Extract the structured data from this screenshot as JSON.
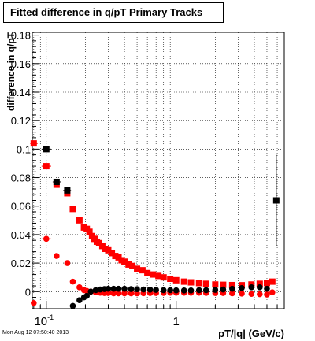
{
  "chart_data": {
    "type": "scatter",
    "title": "Fitted difference in q/pT  Primary Tracks",
    "xlabel": "pT/|q| (GeV/c)",
    "ylabel": "difference in q/pT",
    "xscale": "log",
    "xlim": [
      0.078,
      6.8
    ],
    "ylim": [
      -0.012,
      0.182
    ],
    "x_tick_labels": [
      {
        "value": 0.1,
        "base": "10",
        "exp": "-1"
      },
      {
        "value": 1,
        "text": "1"
      }
    ],
    "y_ticks": [
      0,
      0.02,
      0.04,
      0.06,
      0.08,
      0.1,
      0.12,
      0.14,
      0.16,
      0.18
    ],
    "y_tick_labels": [
      "0",
      "0.02",
      "0.04",
      "0.06",
      "0.08",
      "0.1",
      "0.12",
      "0.14",
      "0.16",
      "0.18"
    ],
    "grid": true,
    "series": [
      {
        "color": "#ff0000",
        "marker": "square",
        "points": [
          {
            "x": 0.08,
            "y": 0.104
          },
          {
            "x": 0.1,
            "y": 0.088
          },
          {
            "x": 0.12,
            "y": 0.075
          },
          {
            "x": 0.145,
            "y": 0.069
          },
          {
            "x": 0.16,
            "y": 0.058
          },
          {
            "x": 0.18,
            "y": 0.05
          },
          {
            "x": 0.195,
            "y": 0.045
          },
          {
            "x": 0.205,
            "y": 0.044
          },
          {
            "x": 0.215,
            "y": 0.042
          },
          {
            "x": 0.225,
            "y": 0.039
          },
          {
            "x": 0.235,
            "y": 0.037
          },
          {
            "x": 0.245,
            "y": 0.035
          },
          {
            "x": 0.255,
            "y": 0.034
          },
          {
            "x": 0.27,
            "y": 0.032
          },
          {
            "x": 0.285,
            "y": 0.03
          },
          {
            "x": 0.3,
            "y": 0.029
          },
          {
            "x": 0.32,
            "y": 0.027
          },
          {
            "x": 0.34,
            "y": 0.025
          },
          {
            "x": 0.36,
            "y": 0.024
          },
          {
            "x": 0.38,
            "y": 0.022
          },
          {
            "x": 0.4,
            "y": 0.021
          },
          {
            "x": 0.43,
            "y": 0.019
          },
          {
            "x": 0.46,
            "y": 0.018
          },
          {
            "x": 0.5,
            "y": 0.016
          },
          {
            "x": 0.55,
            "y": 0.015
          },
          {
            "x": 0.6,
            "y": 0.013
          },
          {
            "x": 0.66,
            "y": 0.012
          },
          {
            "x": 0.73,
            "y": 0.011
          },
          {
            "x": 0.8,
            "y": 0.01
          },
          {
            "x": 0.9,
            "y": 0.009
          },
          {
            "x": 1.0,
            "y": 0.008
          },
          {
            "x": 1.15,
            "y": 0.007
          },
          {
            "x": 1.3,
            "y": 0.0065
          },
          {
            "x": 1.5,
            "y": 0.006
          },
          {
            "x": 1.7,
            "y": 0.0055
          },
          {
            "x": 2.0,
            "y": 0.005
          },
          {
            "x": 2.3,
            "y": 0.0048
          },
          {
            "x": 2.7,
            "y": 0.0046
          },
          {
            "x": 3.2,
            "y": 0.0045
          },
          {
            "x": 3.8,
            "y": 0.005
          },
          {
            "x": 4.4,
            "y": 0.0055
          },
          {
            "x": 5.0,
            "y": 0.006
          },
          {
            "x": 5.5,
            "y": 0.007
          }
        ]
      },
      {
        "color": "#ff0000",
        "marker": "circle",
        "points": [
          {
            "x": 0.08,
            "y": -0.008
          },
          {
            "x": 0.1,
            "y": 0.037
          },
          {
            "x": 0.12,
            "y": 0.025
          },
          {
            "x": 0.145,
            "y": 0.02
          },
          {
            "x": 0.16,
            "y": 0.007
          },
          {
            "x": 0.18,
            "y": 0.003
          },
          {
            "x": 0.195,
            "y": 0.001
          },
          {
            "x": 0.205,
            "y": 0.0005
          },
          {
            "x": 0.22,
            "y": 0.0
          },
          {
            "x": 0.24,
            "y": -0.0005
          },
          {
            "x": 0.26,
            "y": -0.0008
          },
          {
            "x": 0.28,
            "y": -0.001
          },
          {
            "x": 0.3,
            "y": -0.001
          },
          {
            "x": 0.33,
            "y": -0.0012
          },
          {
            "x": 0.36,
            "y": -0.0012
          },
          {
            "x": 0.4,
            "y": -0.0012
          },
          {
            "x": 0.45,
            "y": -0.0012
          },
          {
            "x": 0.5,
            "y": -0.0012
          },
          {
            "x": 0.56,
            "y": -0.0011
          },
          {
            "x": 0.63,
            "y": -0.001
          },
          {
            "x": 0.7,
            "y": -0.001
          },
          {
            "x": 0.8,
            "y": -0.0009
          },
          {
            "x": 0.9,
            "y": -0.0008
          },
          {
            "x": 1.0,
            "y": -0.0008
          },
          {
            "x": 1.15,
            "y": -0.0008
          },
          {
            "x": 1.3,
            "y": -0.0008
          },
          {
            "x": 1.5,
            "y": -0.0008
          },
          {
            "x": 1.7,
            "y": -0.0009
          },
          {
            "x": 2.0,
            "y": -0.001
          },
          {
            "x": 2.3,
            "y": -0.001
          },
          {
            "x": 2.7,
            "y": -0.0012
          },
          {
            "x": 3.2,
            "y": -0.0014
          },
          {
            "x": 3.8,
            "y": -0.0016
          },
          {
            "x": 4.4,
            "y": -0.0018
          },
          {
            "x": 5.0,
            "y": -0.002
          },
          {
            "x": 5.5,
            "y": -0.0005
          }
        ]
      },
      {
        "color": "#000000",
        "marker": "square",
        "points": [
          {
            "x": 0.1,
            "y": 0.1
          },
          {
            "x": 0.12,
            "y": 0.077
          },
          {
            "x": 0.145,
            "y": 0.071
          },
          {
            "x": 5.9,
            "y": 0.064
          }
        ]
      },
      {
        "color": "#000000",
        "marker": "circle",
        "points": [
          {
            "x": 0.16,
            "y": -0.01
          },
          {
            "x": 0.18,
            "y": -0.006
          },
          {
            "x": 0.195,
            "y": -0.004
          },
          {
            "x": 0.205,
            "y": -0.003
          },
          {
            "x": 0.22,
            "y": 0.0
          },
          {
            "x": 0.24,
            "y": 0.001
          },
          {
            "x": 0.26,
            "y": 0.0015
          },
          {
            "x": 0.28,
            "y": 0.0018
          },
          {
            "x": 0.3,
            "y": 0.002
          },
          {
            "x": 0.33,
            "y": 0.002
          },
          {
            "x": 0.36,
            "y": 0.002
          },
          {
            "x": 0.4,
            "y": 0.002
          },
          {
            "x": 0.45,
            "y": 0.0018
          },
          {
            "x": 0.5,
            "y": 0.0017
          },
          {
            "x": 0.56,
            "y": 0.0015
          },
          {
            "x": 0.63,
            "y": 0.0014
          },
          {
            "x": 0.7,
            "y": 0.0012
          },
          {
            "x": 0.8,
            "y": 0.001
          },
          {
            "x": 0.9,
            "y": 0.001
          },
          {
            "x": 1.0,
            "y": 0.0009
          },
          {
            "x": 1.15,
            "y": 0.0008
          },
          {
            "x": 1.3,
            "y": 0.0008
          },
          {
            "x": 1.5,
            "y": 0.001
          },
          {
            "x": 1.7,
            "y": 0.001
          },
          {
            "x": 2.0,
            "y": 0.0012
          },
          {
            "x": 2.3,
            "y": 0.0015
          },
          {
            "x": 2.7,
            "y": 0.002
          },
          {
            "x": 3.2,
            "y": 0.0025
          },
          {
            "x": 3.8,
            "y": 0.003
          },
          {
            "x": 4.4,
            "y": 0.003
          },
          {
            "x": 5.0,
            "y": 0.002
          }
        ]
      }
    ],
    "error_bars": [
      {
        "x": 5.9,
        "y": 0.064,
        "ylow": 0.032,
        "yhigh": 0.096,
        "color": "#000000"
      },
      {
        "x": 0.1,
        "y": 0.1,
        "ylow": 0.1,
        "yhigh": 0.1,
        "xlow": 0.092,
        "xhigh": 0.109,
        "color": "#000000"
      },
      {
        "x": 0.12,
        "y": 0.077,
        "ylow": 0.077,
        "yhigh": 0.077,
        "xlow": 0.112,
        "xhigh": 0.129,
        "color": "#000000"
      },
      {
        "x": 0.145,
        "y": 0.071,
        "ylow": 0.071,
        "yhigh": 0.071,
        "xlow": 0.135,
        "xhigh": 0.155,
        "color": "#000000"
      },
      {
        "x": 0.08,
        "y": 0.104,
        "ylow": 0.104,
        "yhigh": 0.104,
        "xlow": 0.075,
        "xhigh": 0.086,
        "color": "#ff0000"
      },
      {
        "x": 0.1,
        "y": 0.088,
        "ylow": 0.088,
        "yhigh": 0.088,
        "xlow": 0.092,
        "xhigh": 0.109,
        "color": "#ff0000"
      },
      {
        "x": 0.1,
        "y": 0.037,
        "ylow": 0.037,
        "yhigh": 0.037,
        "xlow": 0.092,
        "xhigh": 0.109,
        "color": "#ff0000"
      }
    ]
  },
  "footer": {
    "timestamp": "Mon Aug 12 07:50:40 2013"
  }
}
